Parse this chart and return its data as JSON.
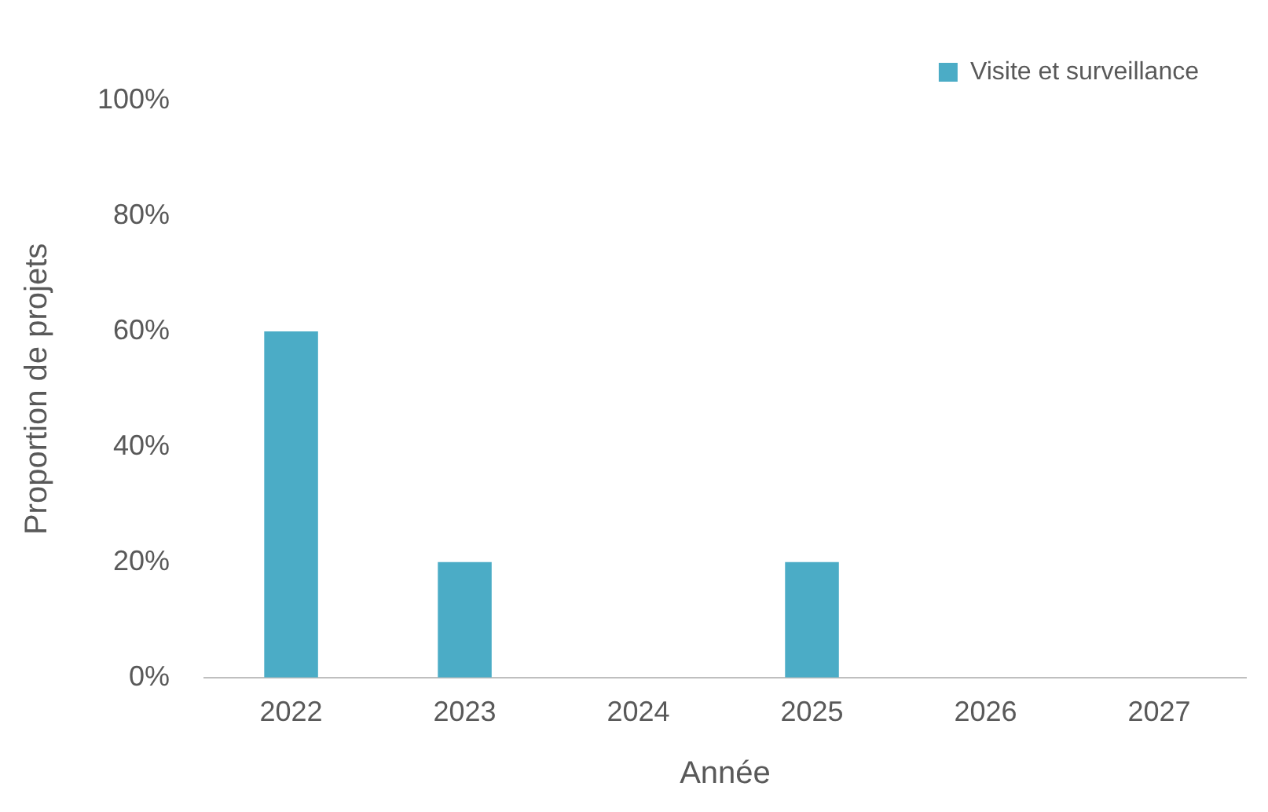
{
  "chart_data": {
    "type": "bar",
    "xlabel": "Année",
    "ylabel": "Proportion de projets",
    "categories": [
      "2022",
      "2023",
      "2024",
      "2025",
      "2026",
      "2027"
    ],
    "series": [
      {
        "name": "Visite et surveillance",
        "color": "#4bacc6",
        "values": [
          60,
          20,
          0,
          20,
          0,
          0
        ]
      }
    ],
    "ylim": [
      0,
      100
    ],
    "yticks": [
      {
        "value": 0,
        "label": "0%"
      },
      {
        "value": 20,
        "label": "20%"
      },
      {
        "value": 40,
        "label": "40%"
      },
      {
        "value": 60,
        "label": "60%"
      },
      {
        "value": 80,
        "label": "80%"
      },
      {
        "value": 100,
        "label": "100%"
      }
    ],
    "grid": false,
    "legend": "top right"
  }
}
